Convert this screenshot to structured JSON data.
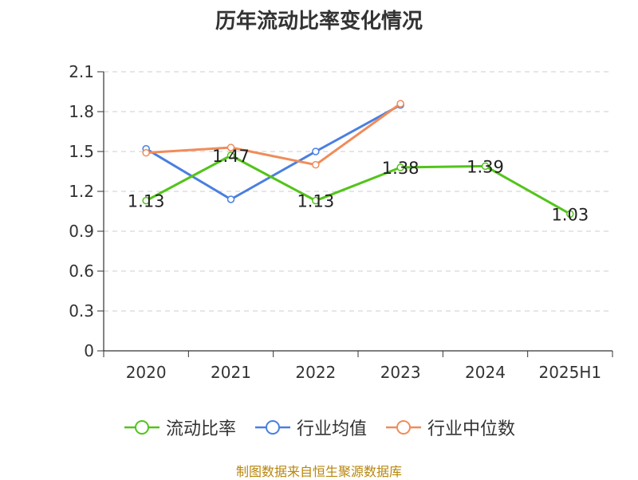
{
  "chart_data": {
    "type": "line",
    "title": "历年流动比率变化情况",
    "categories": [
      "2020",
      "2021",
      "2022",
      "2023",
      "2024",
      "2025H1"
    ],
    "ylim": [
      0,
      2.1
    ],
    "yticks": [
      "0",
      "0.3",
      "0.6",
      "0.9",
      "1.2",
      "1.5",
      "1.8",
      "2.1"
    ],
    "grid": true,
    "legend_position": "bottom",
    "series": [
      {
        "name": "流动比率",
        "color": "#52c41a",
        "values": [
          1.13,
          1.47,
          1.13,
          1.38,
          1.39,
          1.03
        ],
        "labels": [
          "1.13",
          "1.47",
          "1.13",
          "1.38",
          "1.39",
          "1.03"
        ]
      },
      {
        "name": "行业均值",
        "color": "#4a7fe0",
        "values": [
          1.52,
          1.14,
          1.5,
          1.85,
          null,
          null
        ]
      },
      {
        "name": "行业中位数",
        "color": "#f08c5a",
        "values": [
          1.49,
          1.53,
          1.4,
          1.86,
          null,
          null
        ]
      }
    ]
  },
  "source_note": "制图数据来自恒生聚源数据库"
}
